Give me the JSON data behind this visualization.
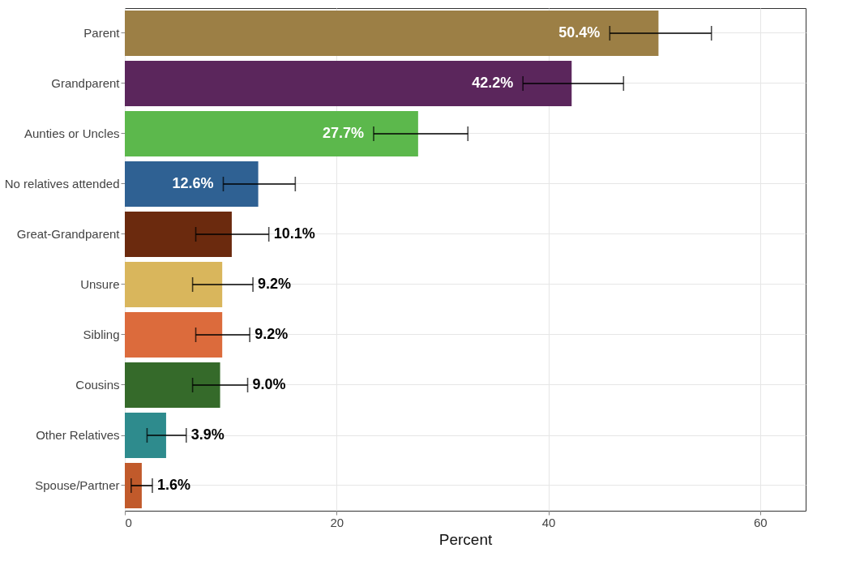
{
  "chart_data": {
    "type": "bar",
    "orientation": "horizontal",
    "xlabel": "Percent",
    "categories": [
      "Parent",
      "Grandparent",
      "Aunties or Uncles",
      "No relatives attended",
      "Great-Grandparent",
      "Unsure",
      "Sibling",
      "Cousins",
      "Other Relatives",
      "Spouse/Partner"
    ],
    "values": [
      50.4,
      42.2,
      27.7,
      12.6,
      10.1,
      9.2,
      9.2,
      9.0,
      3.9,
      1.6
    ],
    "colors": [
      "#9c7f45",
      "#5b265c",
      "#5cb84c",
      "#2f6193",
      "#6b2a0e",
      "#d9b65c",
      "#dc6b3c",
      "#356a2a",
      "#2e8b8d",
      "#c15a2b"
    ],
    "errors": [
      [
        45.8,
        55.4
      ],
      [
        37.6,
        47.1
      ],
      [
        23.5,
        32.4
      ],
      [
        9.3,
        16.1
      ],
      [
        6.7,
        13.6
      ],
      [
        6.4,
        12.1
      ],
      [
        6.7,
        11.8
      ],
      [
        6.4,
        11.6
      ],
      [
        2.1,
        5.8
      ],
      [
        0.6,
        2.6
      ]
    ],
    "value_labels": [
      "50.4%",
      "42.2%",
      "27.7%",
      "12.6%",
      "10.1%",
      "9.2%",
      "9.2%",
      "9.0%",
      "3.9%",
      "1.6%"
    ],
    "xlim": [
      0,
      64.3
    ],
    "xticks": [
      0,
      20,
      40,
      60
    ],
    "grid": true
  }
}
